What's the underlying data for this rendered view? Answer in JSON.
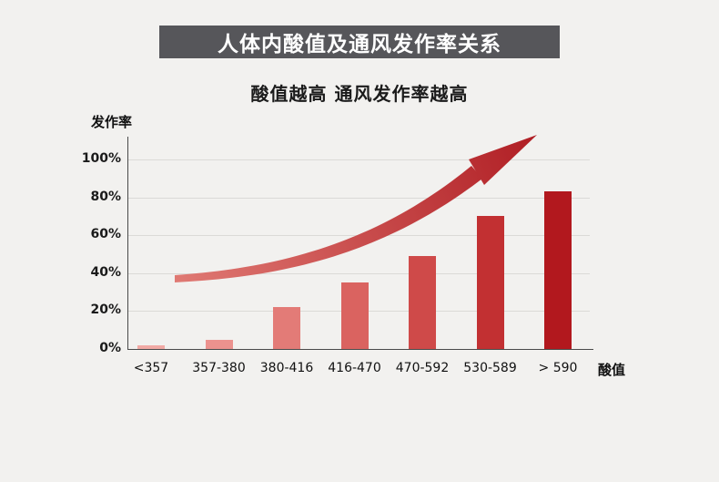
{
  "page": {
    "title": "人体内酸值及通风发作率关系",
    "subtitle": "酸值越高 通风发作率越高"
  },
  "chart_data": {
    "type": "bar",
    "title": "人体内酸值及通风发作率关系",
    "subtitle": "酸值越高 通风发作率越高",
    "ylabel": "发作率",
    "xlabel": "酸值",
    "categories": [
      "<357",
      "357-380",
      "380-416",
      "416-470",
      "470-592",
      "530-589",
      "> 590"
    ],
    "values": [
      2,
      5,
      22,
      35,
      49,
      70,
      83
    ],
    "y_ticks": [
      "0%",
      "20%",
      "40%",
      "60%",
      "80%",
      "100%"
    ],
    "ylim": [
      0,
      100
    ],
    "grid": true,
    "legend": "none",
    "bar_colors": [
      "#f2aaa5",
      "#ec928e",
      "#e37b77",
      "#da6360",
      "#cf4a49",
      "#c23032",
      "#b2181e"
    ],
    "annotation": "rising-trend-arrow",
    "arrow_color_start": "#e07a74",
    "arrow_color_end": "#b01e24"
  },
  "style": {
    "banner_bg": "#56565a",
    "banner_text": "#ffffff",
    "background": "#f2f1ef",
    "axis_color": "#4a4a4a",
    "grid_color": "#dbdad7",
    "text_color": "#111111"
  }
}
